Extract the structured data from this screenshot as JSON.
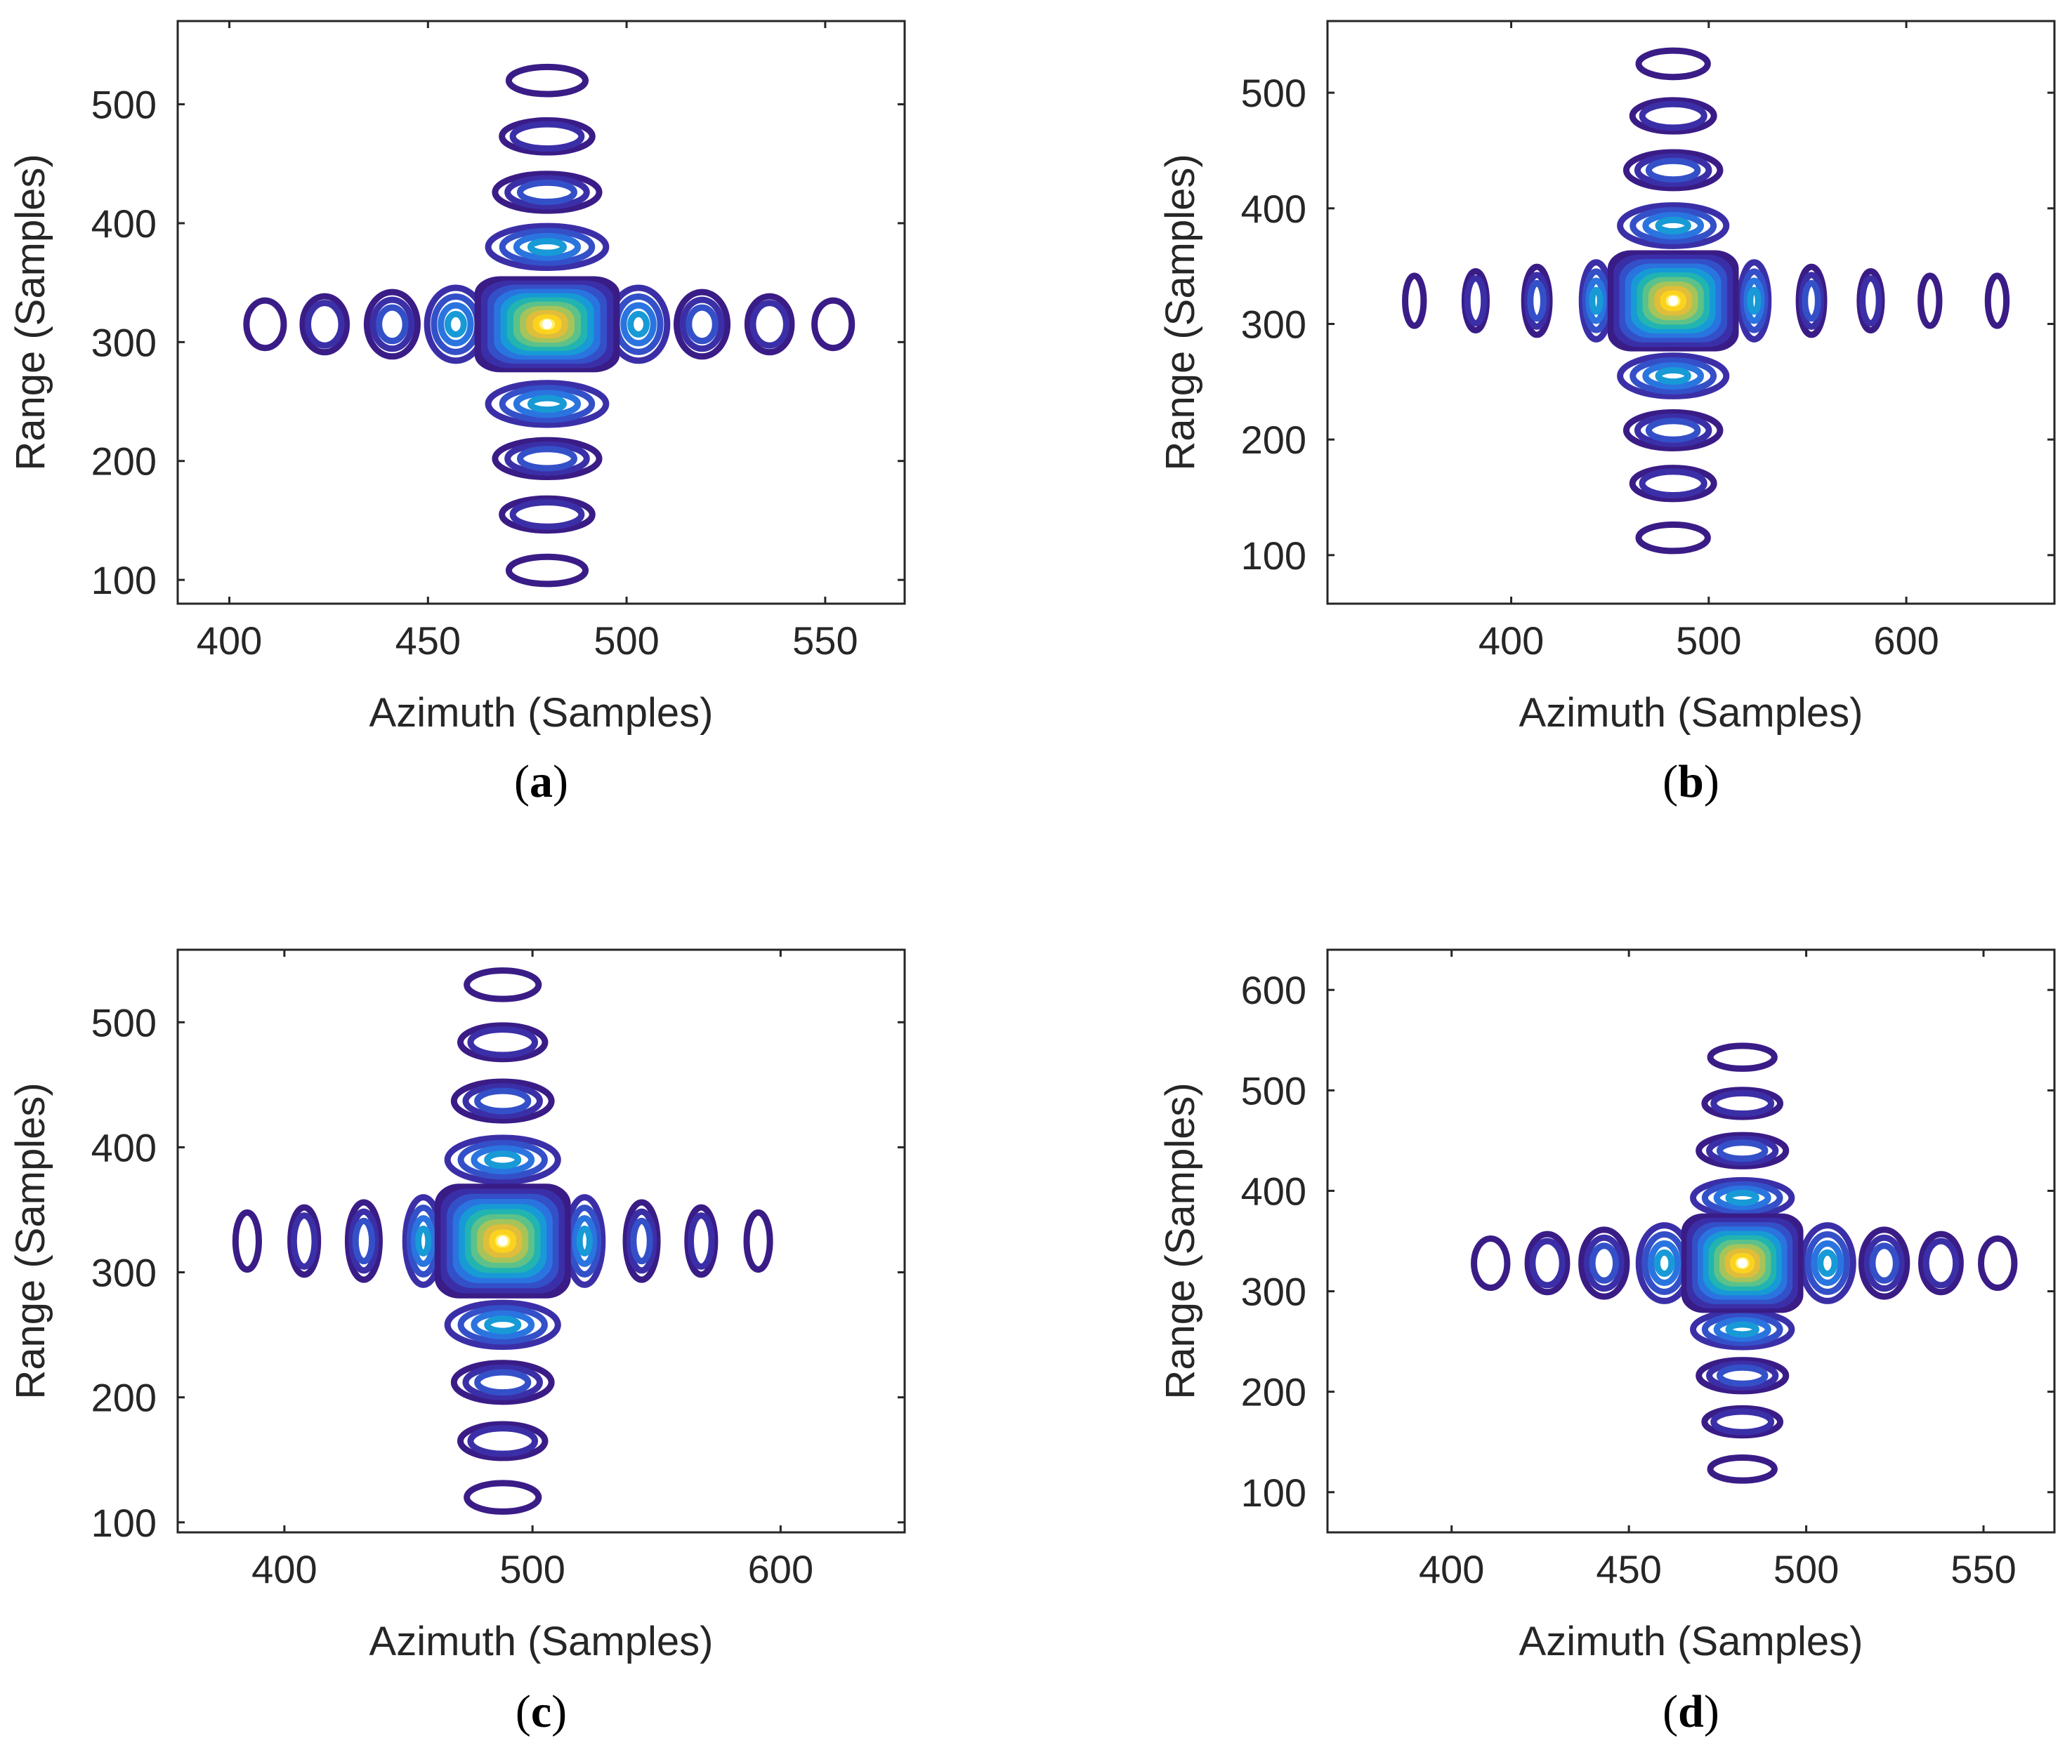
{
  "figure": {
    "colors": [
      "#3a1c87",
      "#3b2fa8",
      "#3450c8",
      "#2a74e0",
      "#179ad6",
      "#22b4b0",
      "#5cc28a",
      "#a6c45a",
      "#e0bd3a",
      "#fbd21f",
      "#fff26a"
    ]
  },
  "chart_data": [
    {
      "type": "contour",
      "panel": "(a)",
      "caption_letter": "a",
      "xlabel": "Azimuth (Samples)",
      "ylabel": "Range (Samples)",
      "xlim": [
        387,
        570
      ],
      "ylim": [
        80,
        570
      ],
      "xticks": [
        400,
        450,
        500,
        550
      ],
      "yticks": [
        100,
        200,
        300,
        400,
        500
      ],
      "center": [
        480,
        315
      ],
      "main_lobe_half_width": [
        16,
        35
      ],
      "azimuth_sidelobes": [
        {
          "x": 409,
          "levels": 1
        },
        {
          "x": 424,
          "levels": 2
        },
        {
          "x": 441,
          "levels": 3
        },
        {
          "x": 457,
          "levels": 4
        },
        {
          "x": 503,
          "levels": 4
        },
        {
          "x": 519,
          "levels": 3
        },
        {
          "x": 536,
          "levels": 2
        },
        {
          "x": 552,
          "levels": 1
        }
      ],
      "range_sidelobes": [
        {
          "y": 108,
          "levels": 1
        },
        {
          "y": 155,
          "levels": 2
        },
        {
          "y": 202,
          "levels": 3
        },
        {
          "y": 248,
          "levels": 4
        },
        {
          "y": 380,
          "levels": 4
        },
        {
          "y": 426,
          "levels": 3
        },
        {
          "y": 473,
          "levels": 2
        },
        {
          "y": 520,
          "levels": 1
        }
      ]
    },
    {
      "type": "contour",
      "panel": "(b)",
      "caption_letter": "b",
      "xlabel": "Azimuth (Samples)",
      "ylabel": "Range (Samples)",
      "xlim": [
        307,
        675
      ],
      "ylim": [
        58,
        562
      ],
      "xticks": [
        400,
        500,
        600
      ],
      "yticks": [
        100,
        200,
        300,
        400,
        500
      ],
      "center": [
        482,
        320
      ],
      "main_lobe_half_width": [
        29,
        38
      ],
      "azimuth_sidelobes": [
        {
          "x": 351,
          "levels": 1
        },
        {
          "x": 382,
          "levels": 2
        },
        {
          "x": 413,
          "levels": 3
        },
        {
          "x": 443,
          "levels": 4
        },
        {
          "x": 523,
          "levels": 4
        },
        {
          "x": 552,
          "levels": 3
        },
        {
          "x": 582,
          "levels": 2
        },
        {
          "x": 612,
          "levels": 1
        },
        {
          "x": 646,
          "levels": 1
        }
      ],
      "range_sidelobes": [
        {
          "y": 115,
          "levels": 1
        },
        {
          "y": 162,
          "levels": 2
        },
        {
          "y": 208,
          "levels": 3
        },
        {
          "y": 255,
          "levels": 4
        },
        {
          "y": 385,
          "levels": 4
        },
        {
          "y": 433,
          "levels": 3
        },
        {
          "y": 480,
          "levels": 2
        },
        {
          "y": 525,
          "levels": 1
        }
      ]
    },
    {
      "type": "contour",
      "panel": "(c)",
      "caption_letter": "c",
      "xlabel": "Azimuth (Samples)",
      "ylabel": "Range (Samples)",
      "xlim": [
        357,
        650
      ],
      "ylim": [
        92,
        558
      ],
      "xticks": [
        400,
        500,
        600
      ],
      "yticks": [
        100,
        200,
        300,
        400,
        500
      ],
      "center": [
        488,
        325
      ],
      "main_lobe_half_width": [
        24,
        40
      ],
      "azimuth_sidelobes": [
        {
          "x": 385,
          "levels": 1
        },
        {
          "x": 408,
          "levels": 2
        },
        {
          "x": 432,
          "levels": 3
        },
        {
          "x": 456,
          "levels": 4
        },
        {
          "x": 521,
          "levels": 4
        },
        {
          "x": 544,
          "levels": 3
        },
        {
          "x": 568,
          "levels": 2
        },
        {
          "x": 591,
          "levels": 1
        }
      ],
      "range_sidelobes": [
        {
          "y": 120,
          "levels": 1
        },
        {
          "y": 165,
          "levels": 2
        },
        {
          "y": 212,
          "levels": 3
        },
        {
          "y": 258,
          "levels": 4
        },
        {
          "y": 390,
          "levels": 4
        },
        {
          "y": 437,
          "levels": 3
        },
        {
          "y": 484,
          "levels": 2
        },
        {
          "y": 530,
          "levels": 1
        }
      ]
    },
    {
      "type": "contour",
      "panel": "(d)",
      "caption_letter": "d",
      "xlabel": "Azimuth (Samples)",
      "ylabel": "Range (Samples)",
      "xlim": [
        365,
        570
      ],
      "ylim": [
        60,
        640
      ],
      "xticks": [
        400,
        450,
        500,
        550
      ],
      "yticks": [
        100,
        200,
        300,
        400,
        500,
        600
      ],
      "center": [
        482,
        328
      ],
      "main_lobe_half_width": [
        15,
        43
      ],
      "azimuth_sidelobes": [
        {
          "x": 411,
          "levels": 1
        },
        {
          "x": 427,
          "levels": 2
        },
        {
          "x": 443,
          "levels": 3
        },
        {
          "x": 460,
          "levels": 4
        },
        {
          "x": 506,
          "levels": 4
        },
        {
          "x": 522,
          "levels": 3
        },
        {
          "x": 538,
          "levels": 2
        },
        {
          "x": 554,
          "levels": 1
        }
      ],
      "range_sidelobes": [
        {
          "y": 123,
          "levels": 1
        },
        {
          "y": 170,
          "levels": 2
        },
        {
          "y": 216,
          "levels": 3
        },
        {
          "y": 262,
          "levels": 4
        },
        {
          "y": 393,
          "levels": 4
        },
        {
          "y": 440,
          "levels": 3
        },
        {
          "y": 487,
          "levels": 2
        },
        {
          "y": 533,
          "levels": 1
        }
      ]
    }
  ]
}
